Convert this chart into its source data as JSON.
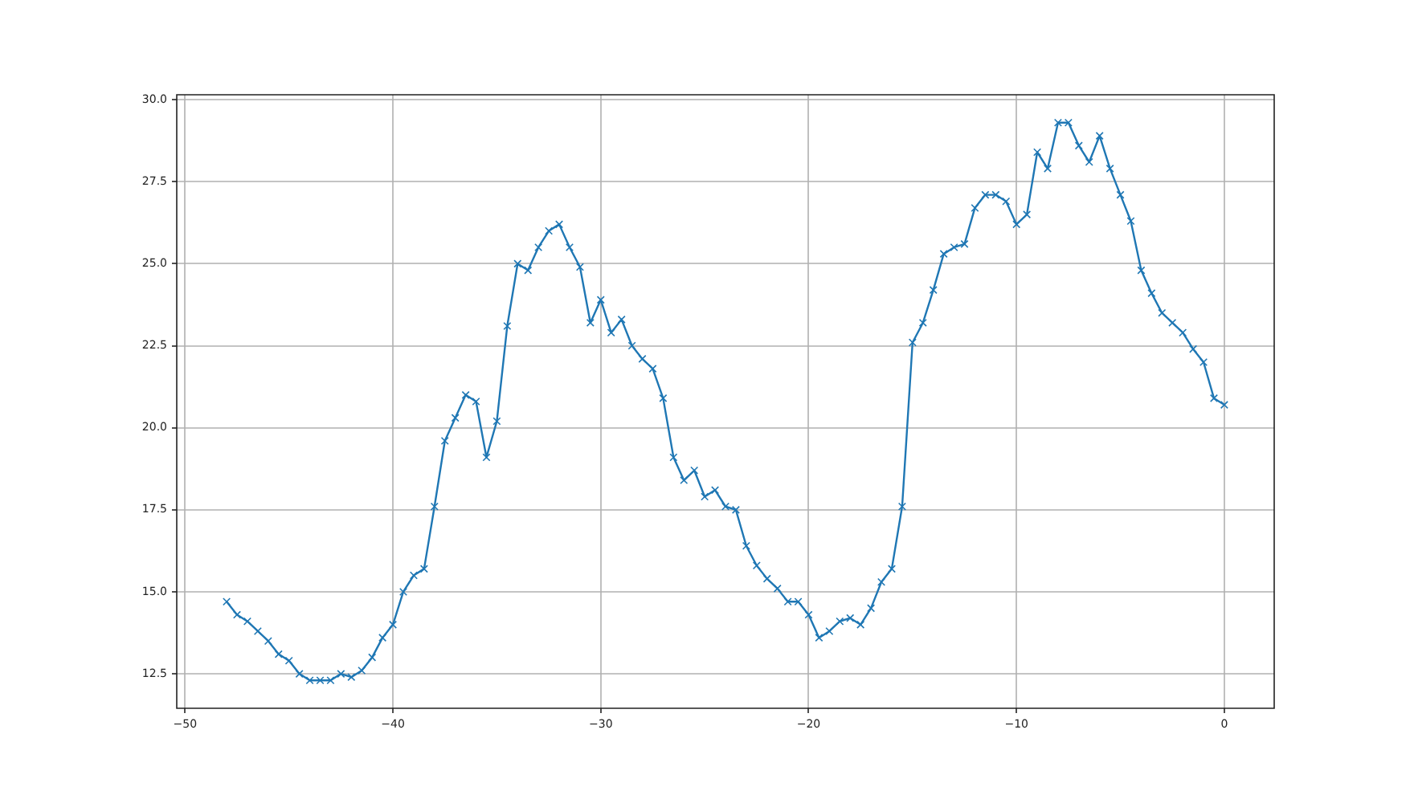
{
  "chart_data": {
    "type": "line",
    "color": "#1f77b4",
    "marker": "cross",
    "line_style": "solid",
    "grid": true,
    "x": [
      -48,
      -47.5,
      -47,
      -46.5,
      -46,
      -45.5,
      -45,
      -44.5,
      -44,
      -43.5,
      -43,
      -42.5,
      -42,
      -41.5,
      -41,
      -40.5,
      -40,
      -39.5,
      -39,
      -38.5,
      -38,
      -37.5,
      -37,
      -36.5,
      -36,
      -35.5,
      -35,
      -34.5,
      -34,
      -33.5,
      -33,
      -32.5,
      -32,
      -31.5,
      -31,
      -30.5,
      -30,
      -29.5,
      -29,
      -28.5,
      -28,
      -27.5,
      -27,
      -26.5,
      -26,
      -25.5,
      -25,
      -24.5,
      -24,
      -23.5,
      -23,
      -22.5,
      -22,
      -21.5,
      -21,
      -20.5,
      -20,
      -19.5,
      -19,
      -18.5,
      -18,
      -17.5,
      -17,
      -16.5,
      -16,
      -15.5,
      -15,
      -14.5,
      -14,
      -13.5,
      -13,
      -12.5,
      -12,
      -11.5,
      -11,
      -10.5,
      -10,
      -9.5,
      -9,
      -8.5,
      -8,
      -7.5,
      -7,
      -6.5,
      -6,
      -5.5,
      -5,
      -4.5,
      -4,
      -3.5,
      -3,
      -2.5,
      -2,
      -1.5,
      -1,
      -0.5,
      0
    ],
    "values": [
      14.7,
      14.3,
      14.1,
      13.8,
      13.5,
      13.1,
      12.9,
      12.5,
      12.3,
      12.3,
      12.3,
      12.5,
      12.4,
      12.6,
      13.0,
      13.6,
      14.0,
      15.0,
      15.5,
      15.7,
      17.6,
      19.6,
      20.3,
      21.0,
      20.8,
      19.1,
      20.2,
      23.1,
      25.0,
      24.8,
      25.5,
      26.0,
      26.2,
      25.5,
      24.9,
      23.2,
      23.9,
      22.9,
      23.3,
      22.5,
      22.1,
      21.8,
      20.9,
      19.1,
      18.4,
      18.7,
      17.9,
      18.1,
      17.6,
      17.5,
      16.4,
      15.8,
      15.4,
      15.1,
      14.7,
      14.7,
      14.3,
      13.6,
      13.8,
      14.1,
      14.2,
      14.0,
      14.5,
      15.3,
      15.7,
      17.6,
      22.6,
      23.2,
      24.2,
      25.3,
      25.5,
      25.6,
      26.7,
      27.1,
      27.1,
      26.9,
      26.2,
      26.5,
      28.4,
      27.9,
      29.3,
      29.3,
      28.6,
      28.1,
      28.9,
      27.9,
      27.1,
      26.3,
      24.8,
      24.1,
      23.5,
      23.2,
      22.9,
      22.4,
      22.0,
      20.9,
      20.7
    ],
    "xlim": [
      -50.4,
      2.4
    ],
    "ylim": [
      11.45,
      30.15
    ],
    "xticks": [
      {
        "value": -50,
        "label": "−50"
      },
      {
        "value": -40,
        "label": "−40"
      },
      {
        "value": -30,
        "label": "−30"
      },
      {
        "value": -20,
        "label": "−20"
      },
      {
        "value": -10,
        "label": "−10"
      },
      0
    ],
    "yticks": [
      12.5,
      {
        "value": 15,
        "label": "15.0"
      },
      17.5,
      {
        "value": 20,
        "label": "20.0"
      },
      22.5,
      {
        "value": 25,
        "label": "25.0"
      },
      27.5,
      {
        "value": 30,
        "label": "30.0"
      }
    ]
  }
}
